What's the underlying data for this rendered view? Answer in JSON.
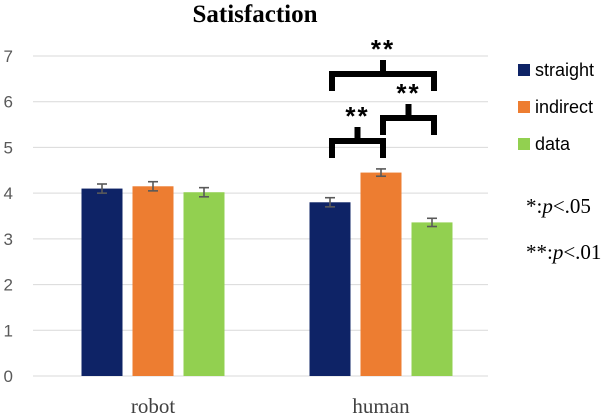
{
  "chart_data": {
    "type": "bar",
    "title": "Satisfaction",
    "xlabel": "",
    "ylabel": "",
    "ylim": [
      0,
      7
    ],
    "yticks": [
      0,
      1,
      2,
      3,
      4,
      5,
      6,
      7
    ],
    "grid": true,
    "legend_position": "right",
    "categories": [
      "robot",
      "human"
    ],
    "series": [
      {
        "name": "straight",
        "color": "#0e2366",
        "values": [
          4.1,
          3.8
        ],
        "errors": [
          0.1,
          0.1
        ]
      },
      {
        "name": "indirect",
        "color": "#ed7d31",
        "values": [
          4.15,
          4.45
        ],
        "errors": [
          0.1,
          0.08
        ]
      },
      {
        "name": "data",
        "color": "#92d050",
        "values": [
          4.02,
          3.36
        ],
        "errors": [
          0.1,
          0.09
        ]
      }
    ],
    "significance": [
      {
        "category": "human",
        "from_series": 0,
        "to_series": 2,
        "label": "**"
      },
      {
        "category": "human",
        "from_series": 0,
        "to_series": 1,
        "label": "**"
      },
      {
        "category": "human",
        "from_series": 1,
        "to_series": 2,
        "label": "**"
      }
    ],
    "notes": [
      {
        "mark": "*",
        "p": "p",
        "threshold": "<.05"
      },
      {
        "mark": "**",
        "p": "p",
        "threshold": "<.01"
      }
    ]
  }
}
